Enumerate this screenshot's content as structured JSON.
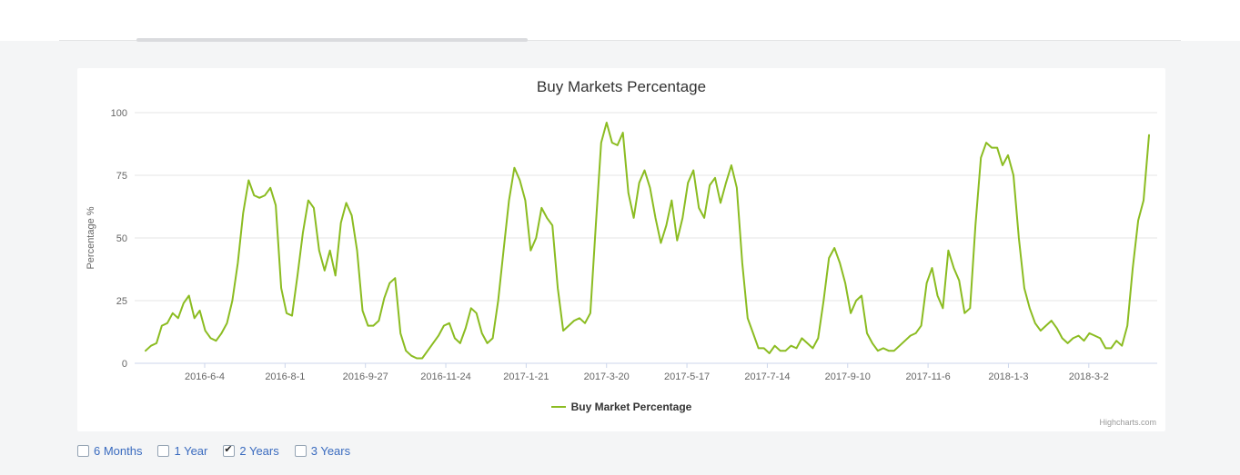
{
  "chart": {
    "credit": "Highcharts.com"
  },
  "chart_data": {
    "type": "line",
    "title": "Buy Markets Percentage",
    "xlabel": "",
    "ylabel": "Percentage %",
    "ylim": [
      0,
      100
    ],
    "yticks": [
      0,
      25,
      50,
      75,
      100
    ],
    "grid": true,
    "legend_position": "bottom",
    "x_tick_labels": [
      "2016-6-4",
      "2016-8-1",
      "2016-9-27",
      "2016-11-24",
      "2017-1-21",
      "2017-3-20",
      "2017-5-17",
      "2017-7-14",
      "2017-9-10",
      "2017-11-6",
      "2018-1-3",
      "2018-3-2"
    ],
    "series": [
      {
        "name": "Buy Market Percentage",
        "color": "#8bbc21",
        "values": [
          5,
          7,
          8,
          15,
          16,
          20,
          18,
          24,
          27,
          18,
          21,
          13,
          10,
          9,
          12,
          16,
          25,
          40,
          60,
          73,
          67,
          66,
          67,
          70,
          63,
          30,
          20,
          19,
          35,
          52,
          65,
          62,
          45,
          37,
          45,
          35,
          56,
          64,
          59,
          45,
          21,
          15,
          15,
          17,
          26,
          32,
          34,
          12,
          5,
          3,
          2,
          2,
          5,
          8,
          11,
          15,
          16,
          10,
          8,
          14,
          22,
          20,
          12,
          8,
          10,
          25,
          45,
          65,
          78,
          73,
          65,
          45,
          50,
          62,
          58,
          55,
          30,
          13,
          15,
          17,
          18,
          16,
          20,
          55,
          88,
          96,
          88,
          87,
          92,
          68,
          58,
          72,
          77,
          70,
          58,
          48,
          55,
          65,
          49,
          58,
          72,
          77,
          62,
          58,
          71,
          74,
          64,
          72,
          79,
          70,
          40,
          18,
          12,
          6,
          6,
          4,
          7,
          5,
          5,
          7,
          6,
          10,
          8,
          6,
          10,
          25,
          42,
          46,
          40,
          32,
          20,
          25,
          27,
          12,
          8,
          5,
          6,
          5,
          5,
          7,
          9,
          11,
          12,
          15,
          32,
          38,
          27,
          22,
          45,
          38,
          33,
          20,
          22,
          55,
          82,
          88,
          86,
          86,
          79,
          83,
          75,
          50,
          30,
          22,
          16,
          13,
          15,
          17,
          14,
          10,
          8,
          10,
          11,
          9,
          12,
          11,
          10,
          6,
          6,
          9,
          7,
          15,
          38,
          57,
          65,
          91
        ]
      }
    ]
  },
  "colors": {
    "line": "#8bbc21",
    "axis": "#ccd6eb",
    "grid": "#e6e6e6",
    "tick_label": "#666666",
    "title": "#333333",
    "range_text": "#3a6bbf"
  },
  "controls": {
    "options": [
      {
        "label": "6 Months",
        "checked": false
      },
      {
        "label": "1 Year",
        "checked": false
      },
      {
        "label": "2 Years",
        "checked": true
      },
      {
        "label": "3 Years",
        "checked": false
      }
    ]
  }
}
